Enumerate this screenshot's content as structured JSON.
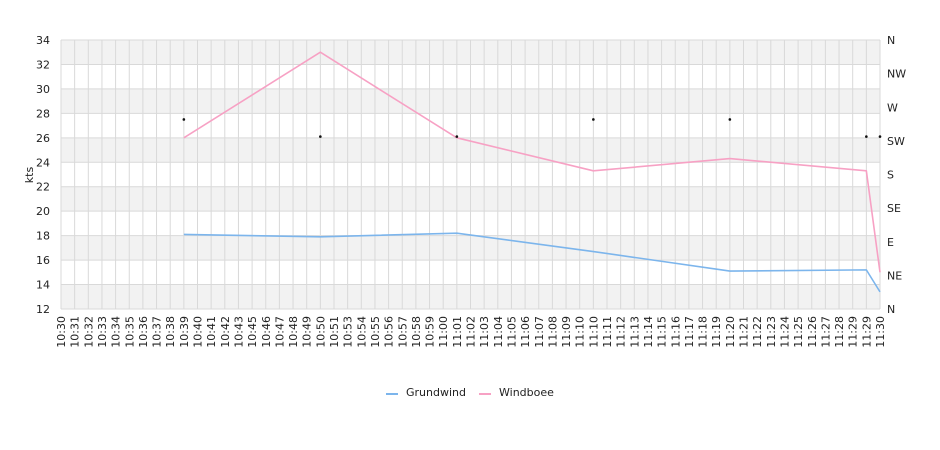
{
  "chart_data": {
    "type": "line",
    "ylabel": "kts",
    "ylim": [
      12,
      34
    ],
    "yticks": [
      12,
      14,
      16,
      18,
      20,
      22,
      24,
      26,
      28,
      30,
      32,
      34
    ],
    "y2_ticks": [
      "N",
      "NW",
      "W",
      "SW",
      "S",
      "SE",
      "E",
      "NE",
      "N"
    ],
    "x_start_min": 630,
    "x_end_min": 690,
    "x_tick_labels": [
      "10:30",
      "10:31",
      "10:32",
      "10:33",
      "10:34",
      "10:35",
      "10:36",
      "10:37",
      "10:38",
      "10:39",
      "10:40",
      "10:41",
      "10:42",
      "10:43",
      "10:45",
      "10:46",
      "10:47",
      "10:48",
      "10:49",
      "10:50",
      "10:51",
      "10:53",
      "10:54",
      "10:55",
      "10:56",
      "10:57",
      "10:58",
      "10:59",
      "11:00",
      "11:01",
      "11:02",
      "11:03",
      "11:04",
      "11:05",
      "11:06",
      "11:07",
      "11:08",
      "11:09",
      "11:10",
      "11:10",
      "11:11",
      "11:12",
      "11:13",
      "11:14",
      "11:15",
      "11:16",
      "11:17",
      "11:18",
      "11:19",
      "11:20",
      "11:21",
      "11:22",
      "11:23",
      "11:24",
      "11:25",
      "11:26",
      "11:27",
      "11:28",
      "11:29",
      "11:29",
      "11:30"
    ],
    "series": [
      {
        "name": "Grundwind",
        "color": "#7cb5ec",
        "points": [
          [
            639,
            18.1
          ],
          [
            649,
            17.9
          ],
          [
            659,
            18.2
          ],
          [
            669,
            16.7
          ],
          [
            679,
            15.1
          ],
          [
            689,
            15.2
          ],
          [
            690,
            13.4
          ]
        ]
      },
      {
        "name": "Windboee",
        "color": "#f7a1c4",
        "points": [
          [
            639,
            26.0
          ],
          [
            649,
            33.0
          ],
          [
            659,
            26.0
          ],
          [
            669,
            23.3
          ],
          [
            679,
            24.3
          ],
          [
            689,
            23.3
          ],
          [
            690,
            15.0
          ]
        ]
      }
    ],
    "direction_markers": [
      [
        639,
        27.5
      ],
      [
        649,
        26.1
      ],
      [
        659,
        26.1
      ],
      [
        669,
        27.5
      ],
      [
        679,
        27.5
      ],
      [
        689,
        26.1
      ],
      [
        690,
        26.1
      ]
    ],
    "legend_position": "bottom-center"
  }
}
